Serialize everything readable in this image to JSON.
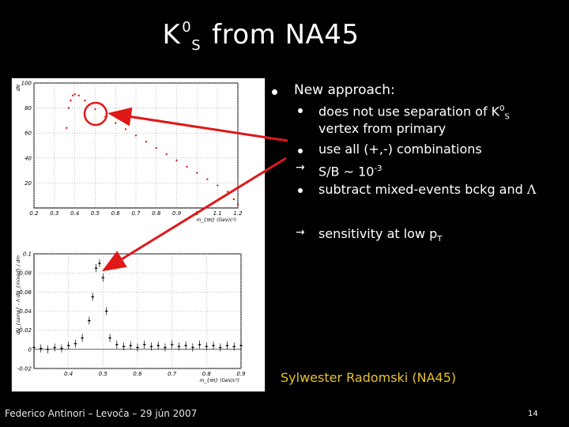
{
  "title": {
    "k": "K",
    "sup": "0",
    "sub": "S",
    "rest": "from NA45"
  },
  "bullets": {
    "main": "New approach:",
    "items": [
      {
        "marker": "dot",
        "line1_a": "does not use separation of K",
        "line1_sup": "0",
        "line1_sub": "S",
        "line2": "vertex from primary"
      },
      {
        "marker": "dot",
        "text": "use all (+,-) combinations"
      },
      {
        "marker": "arrow",
        "text_a": "S/B ~ 10",
        "text_sup": "-3"
      },
      {
        "marker": "dot",
        "text_a": "subtract mixed-events bckg and ",
        "text_symbol": "Λ"
      },
      {
        "marker": "arrow",
        "text_a": "sensitivity at low p",
        "text_sub": "T"
      }
    ]
  },
  "author": "Sylwester Radomski (NA45)",
  "footer": "Federico Antinori – Levoča – 29 jún 2007",
  "slide_number": "14",
  "colors": {
    "background": "#000000",
    "author": "#e6c22a",
    "arrow": "#e01818",
    "curve": "#cc2222",
    "signal": "#000000"
  },
  "chart_data": [
    {
      "type": "scatter",
      "xlabel": "m_{ππ} (GeV/c²)",
      "ylabel": "dN",
      "xlim": [
        0.2,
        1.2
      ],
      "ylim": [
        0,
        100
      ],
      "x_ticks": [
        "0.2",
        "0.3",
        "0.4",
        "0.5",
        "0.6",
        "0.7",
        "0.8",
        "0.9",
        "1",
        "1.1",
        "1.2"
      ],
      "y_ticks": [
        "20",
        "40",
        "60",
        "80",
        "100"
      ],
      "grid": true,
      "points": [
        [
          0.36,
          64
        ],
        [
          0.37,
          80
        ],
        [
          0.38,
          86
        ],
        [
          0.39,
          90
        ],
        [
          0.4,
          91
        ],
        [
          0.42,
          90
        ],
        [
          0.45,
          86
        ],
        [
          0.5,
          79
        ],
        [
          0.55,
          73
        ],
        [
          0.6,
          68
        ],
        [
          0.65,
          63
        ],
        [
          0.7,
          58
        ],
        [
          0.75,
          53
        ],
        [
          0.8,
          48
        ],
        [
          0.85,
          43
        ],
        [
          0.9,
          38
        ],
        [
          0.95,
          33
        ],
        [
          1.0,
          28
        ],
        [
          1.05,
          23
        ],
        [
          1.1,
          18
        ],
        [
          1.15,
          13
        ],
        [
          1.18,
          7
        ],
        [
          1.2,
          3
        ]
      ]
    },
    {
      "type": "scatter",
      "xlabel": "m_{ππ} (GeV/c²)",
      "ylabel": "dN_{same} - Λ·dN_{mixed} / dm",
      "xlim": [
        0.3,
        0.9
      ],
      "ylim": [
        -0.02,
        0.1
      ],
      "x_ticks": [
        "0.4",
        "0.5",
        "0.6",
        "0.7",
        "0.8",
        "0.9"
      ],
      "y_ticks": [
        "-0.02",
        "0",
        "0.02",
        "0.04",
        "0.06",
        "0.08",
        "0.1"
      ],
      "grid": true,
      "points": [
        [
          0.3,
          0.002
        ],
        [
          0.32,
          0.001
        ],
        [
          0.34,
          0.0
        ],
        [
          0.36,
          0.002
        ],
        [
          0.38,
          0.001
        ],
        [
          0.4,
          0.004
        ],
        [
          0.42,
          0.006
        ],
        [
          0.44,
          0.012
        ],
        [
          0.46,
          0.03
        ],
        [
          0.47,
          0.055
        ],
        [
          0.48,
          0.085
        ],
        [
          0.49,
          0.09
        ],
        [
          0.5,
          0.075
        ],
        [
          0.51,
          0.04
        ],
        [
          0.52,
          0.012
        ],
        [
          0.54,
          0.005
        ],
        [
          0.56,
          0.003
        ],
        [
          0.58,
          0.004
        ],
        [
          0.6,
          0.002
        ],
        [
          0.62,
          0.005
        ],
        [
          0.64,
          0.003
        ],
        [
          0.66,
          0.004
        ],
        [
          0.68,
          0.002
        ],
        [
          0.7,
          0.005
        ],
        [
          0.72,
          0.003
        ],
        [
          0.74,
          0.004
        ],
        [
          0.76,
          0.002
        ],
        [
          0.78,
          0.005
        ],
        [
          0.8,
          0.003
        ],
        [
          0.82,
          0.004
        ],
        [
          0.84,
          0.002
        ],
        [
          0.86,
          0.004
        ],
        [
          0.88,
          0.003
        ],
        [
          0.9,
          0.004
        ]
      ]
    }
  ]
}
